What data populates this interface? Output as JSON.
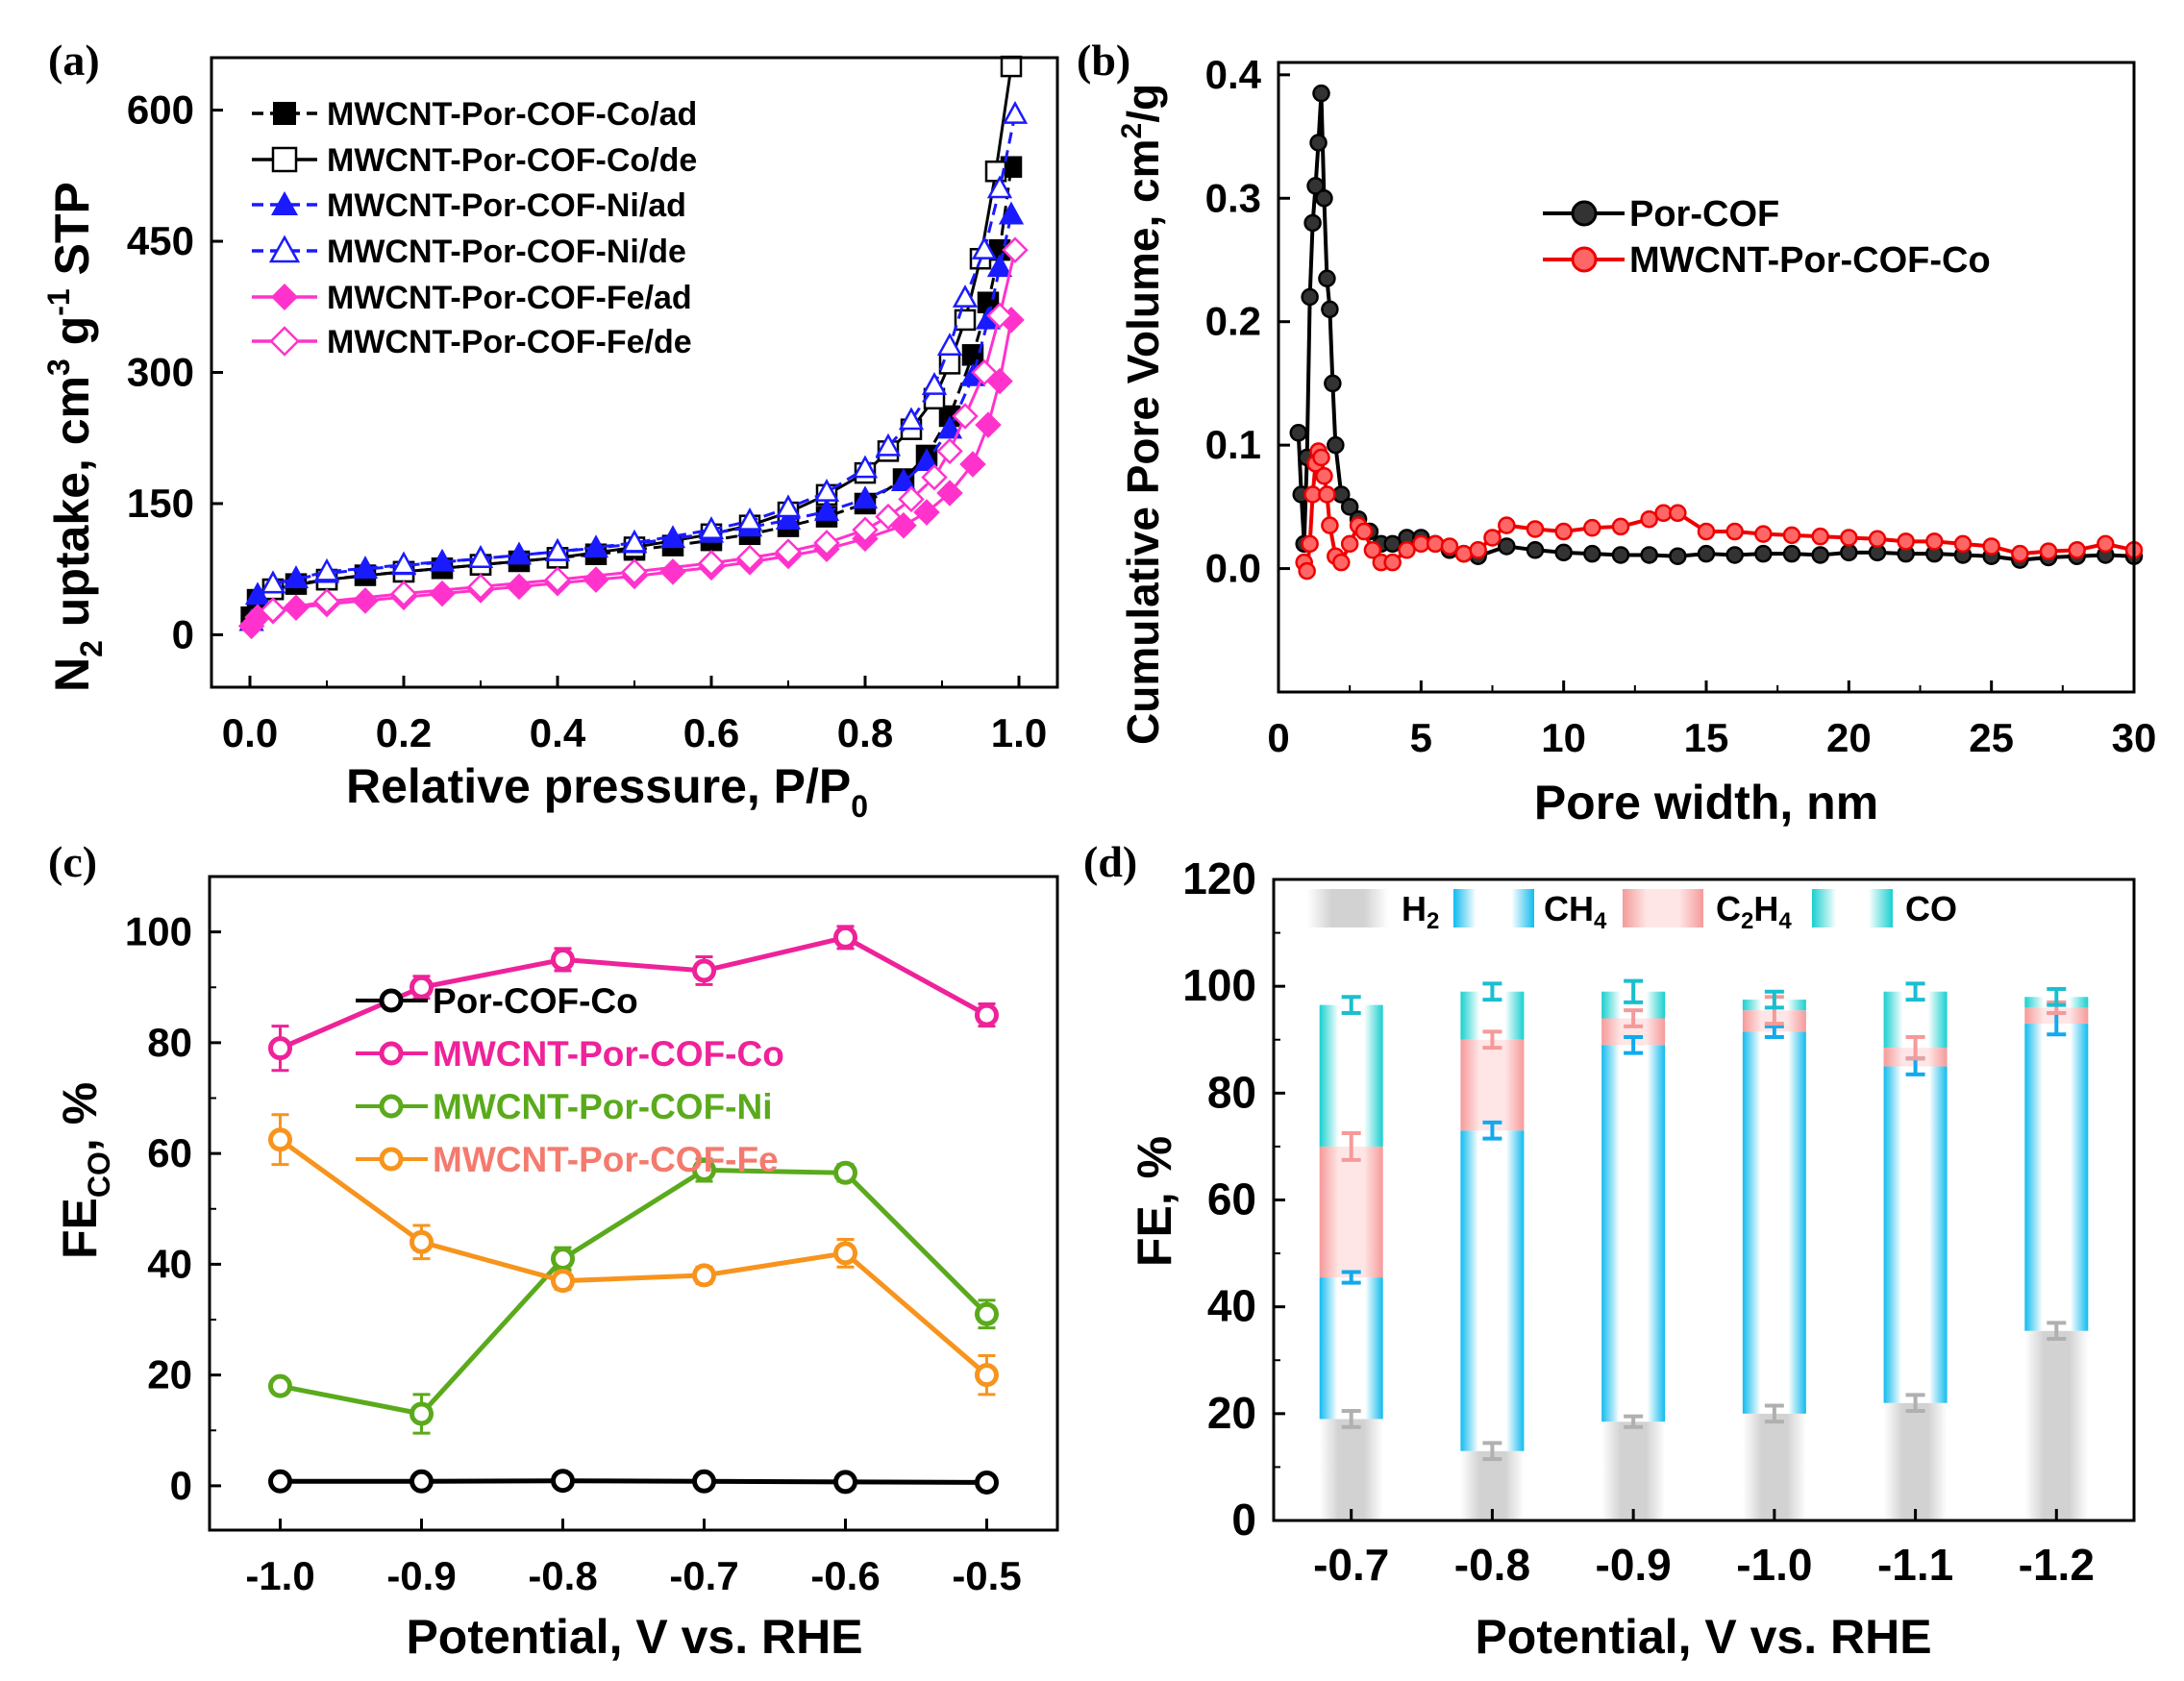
{
  "chart_data": [
    {
      "panel": "(a)",
      "type": "line",
      "xlabel": "Relative pressure, P/P0",
      "ylabel": "N2 uptake, cm3 g-1 STP",
      "xlim": [
        -0.05,
        1.05
      ],
      "ylim": [
        -60,
        660
      ],
      "xticks": [
        "0.0",
        "0.2",
        "0.4",
        "0.6",
        "0.8",
        "1.0"
      ],
      "yticks": [
        "0",
        "150",
        "300",
        "450",
        "600"
      ],
      "legend_position": "top-left",
      "series": [
        {
          "name": "MWCNT-Por-COF-Co/ad",
          "color": "#000000",
          "marker": "square",
          "filled": true,
          "x": [
            0.002,
            0.01,
            0.03,
            0.06,
            0.1,
            0.15,
            0.2,
            0.25,
            0.3,
            0.35,
            0.4,
            0.45,
            0.5,
            0.55,
            0.6,
            0.65,
            0.7,
            0.75,
            0.8,
            0.85,
            0.88,
            0.91,
            0.94,
            0.96,
            0.975,
            0.99
          ],
          "y": [
            20,
            40,
            52,
            58,
            63,
            68,
            72,
            76,
            80,
            84,
            88,
            92,
            97,
            102,
            108,
            115,
            124,
            135,
            150,
            178,
            205,
            250,
            320,
            380,
            440,
            535
          ]
        },
        {
          "name": "MWCNT-Por-COF-Co/de",
          "color": "#000000",
          "marker": "square",
          "filled": false,
          "x": [
            0.99,
            0.97,
            0.95,
            0.93,
            0.91,
            0.89,
            0.86,
            0.83,
            0.8,
            0.75,
            0.7,
            0.65,
            0.6,
            0.5,
            0.4,
            0.3,
            0.2,
            0.1,
            0.03
          ],
          "y": [
            650,
            530,
            430,
            360,
            310,
            270,
            235,
            210,
            185,
            160,
            140,
            125,
            115,
            100,
            88,
            80,
            72,
            63,
            52
          ]
        },
        {
          "name": "MWCNT-Por-COF-Ni/ad",
          "color": "#1a1aff",
          "marker": "triangle",
          "filled": true,
          "x": [
            0.002,
            0.01,
            0.03,
            0.06,
            0.1,
            0.15,
            0.2,
            0.25,
            0.3,
            0.35,
            0.4,
            0.45,
            0.5,
            0.55,
            0.6,
            0.65,
            0.7,
            0.75,
            0.8,
            0.85,
            0.88,
            0.91,
            0.94,
            0.96,
            0.975,
            0.99
          ],
          "y": [
            15,
            45,
            58,
            64,
            70,
            75,
            79,
            83,
            87,
            91,
            95,
            99,
            104,
            110,
            116,
            123,
            131,
            141,
            155,
            175,
            198,
            235,
            295,
            360,
            420,
            480
          ]
        },
        {
          "name": "MWCNT-Por-COF-Ni/de",
          "color": "#1a1aff",
          "marker": "triangle",
          "filled": false,
          "x": [
            0.995,
            0.975,
            0.955,
            0.93,
            0.91,
            0.89,
            0.86,
            0.83,
            0.8,
            0.75,
            0.7,
            0.65,
            0.6,
            0.5,
            0.4,
            0.3,
            0.2,
            0.1,
            0.03
          ],
          "y": [
            595,
            510,
            440,
            385,
            330,
            285,
            245,
            215,
            190,
            163,
            145,
            130,
            120,
            105,
            95,
            87,
            80,
            72,
            58
          ]
        },
        {
          "name": "MWCNT-Por-COF-Fe/ad",
          "color": "#ff33cc",
          "marker": "diamond",
          "filled": true,
          "x": [
            0.002,
            0.01,
            0.03,
            0.06,
            0.1,
            0.15,
            0.2,
            0.25,
            0.3,
            0.35,
            0.4,
            0.45,
            0.5,
            0.55,
            0.6,
            0.65,
            0.7,
            0.75,
            0.8,
            0.85,
            0.88,
            0.91,
            0.94,
            0.96,
            0.975,
            0.99
          ],
          "y": [
            10,
            20,
            27,
            31,
            35,
            39,
            43,
            47,
            51,
            55,
            59,
            63,
            67,
            72,
            77,
            83,
            90,
            98,
            110,
            125,
            140,
            162,
            195,
            240,
            290,
            360
          ]
        },
        {
          "name": "MWCNT-Por-COF-Fe/de",
          "color": "#ff33cc",
          "marker": "diamond",
          "filled": false,
          "x": [
            0.995,
            0.975,
            0.955,
            0.93,
            0.91,
            0.89,
            0.86,
            0.83,
            0.8,
            0.75,
            0.7,
            0.65,
            0.6,
            0.5,
            0.4,
            0.3,
            0.2,
            0.1,
            0.03
          ],
          "y": [
            440,
            365,
            300,
            250,
            210,
            180,
            155,
            135,
            120,
            105,
            95,
            88,
            82,
            72,
            63,
            55,
            47,
            38,
            28
          ]
        }
      ]
    },
    {
      "panel": "(b)",
      "type": "line",
      "xlabel": "Pore width, nm",
      "ylabel": "Cumulative Pore Volume, cm2/g",
      "xlim": [
        0,
        30
      ],
      "ylim": [
        -0.1,
        0.41
      ],
      "xticks": [
        "0",
        "5",
        "10",
        "15",
        "20",
        "25",
        "30"
      ],
      "yticks": [
        "0.0",
        "0.1",
        "0.2",
        "0.3",
        "0.4"
      ],
      "legend_position": "top-right",
      "series": [
        {
          "name": "Por-COF",
          "color": "#000000",
          "x": [
            0.7,
            0.8,
            0.9,
            1.0,
            1.1,
            1.2,
            1.3,
            1.4,
            1.5,
            1.6,
            1.7,
            1.8,
            1.9,
            2.0,
            2.2,
            2.5,
            2.8,
            3.2,
            3.6,
            4.0,
            4.5,
            5.0,
            5.5,
            6.0,
            6.5,
            7.0,
            8,
            9,
            10,
            11,
            12,
            13,
            14,
            15,
            16,
            17,
            18,
            19,
            20,
            21,
            22,
            23,
            24,
            25,
            26,
            27,
            28,
            29,
            30
          ],
          "y": [
            0.11,
            0.06,
            0.02,
            0.09,
            0.22,
            0.28,
            0.31,
            0.345,
            0.385,
            0.3,
            0.235,
            0.21,
            0.15,
            0.1,
            0.06,
            0.05,
            0.04,
            0.03,
            0.02,
            0.02,
            0.025,
            0.025,
            0.02,
            0.015,
            0.012,
            0.01,
            0.018,
            0.015,
            0.013,
            0.012,
            0.011,
            0.011,
            0.01,
            0.012,
            0.011,
            0.012,
            0.012,
            0.011,
            0.013,
            0.013,
            0.012,
            0.012,
            0.011,
            0.01,
            0.007,
            0.009,
            0.01,
            0.011,
            0.01
          ]
        },
        {
          "name": "MWCNT-Por-COF-Co",
          "color": "#ee0000",
          "x": [
            0.9,
            1.0,
            1.1,
            1.2,
            1.3,
            1.4,
            1.5,
            1.6,
            1.7,
            1.8,
            2.0,
            2.2,
            2.5,
            2.8,
            3.0,
            3.3,
            3.6,
            4.0,
            4.5,
            5.0,
            5.5,
            6.0,
            6.5,
            7.0,
            7.5,
            8,
            9,
            10,
            11,
            12,
            13,
            13.5,
            14,
            15,
            16,
            17,
            18,
            19,
            20,
            21,
            22,
            23,
            24,
            25,
            26,
            27,
            28,
            29,
            30
          ],
          "y": [
            0.005,
            -0.002,
            0.02,
            0.06,
            0.085,
            0.095,
            0.09,
            0.075,
            0.06,
            0.035,
            0.01,
            0.005,
            0.02,
            0.035,
            0.03,
            0.015,
            0.005,
            0.005,
            0.015,
            0.02,
            0.02,
            0.018,
            0.012,
            0.015,
            0.025,
            0.035,
            0.032,
            0.03,
            0.033,
            0.034,
            0.04,
            0.045,
            0.045,
            0.03,
            0.03,
            0.028,
            0.027,
            0.026,
            0.025,
            0.024,
            0.022,
            0.022,
            0.02,
            0.018,
            0.012,
            0.014,
            0.015,
            0.02,
            0.015
          ]
        }
      ]
    },
    {
      "panel": "(c)",
      "type": "line",
      "xlabel": "Potential, V vs. RHE",
      "ylabel": "FECO, %",
      "xlim": [
        -1.05,
        -0.45
      ],
      "ylim": [
        -8,
        110
      ],
      "xticks": [
        "-1.0",
        "-0.9",
        "-0.8",
        "-0.7",
        "-0.6",
        "-0.5"
      ],
      "yticks": [
        "0",
        "20",
        "40",
        "60",
        "80",
        "100"
      ],
      "categories": [
        "-1.0",
        "-0.9",
        "-0.8",
        "-0.7",
        "-0.6",
        "-0.5"
      ],
      "legend_position": "center-left",
      "series": [
        {
          "name": "Por-COF-Co",
          "color": "#000000",
          "values": [
            0.8,
            0.8,
            0.9,
            0.8,
            0.7,
            0.6
          ],
          "errors": [
            0,
            0,
            0,
            0,
            0,
            0
          ]
        },
        {
          "name": "MWCNT-Por-COF-Co",
          "color": "#ee2299",
          "values": [
            79,
            90,
            95,
            93,
            99,
            85
          ],
          "errors": [
            4,
            2,
            2,
            2.5,
            2,
            2
          ]
        },
        {
          "name": "MWCNT-Por-COF-Ni",
          "color": "#5aaa1c",
          "values": [
            18,
            13,
            41,
            57,
            56.5,
            31
          ],
          "errors": [
            1,
            3.5,
            2,
            2,
            1.5,
            2.5
          ]
        },
        {
          "name": "MWCNT-Por-COF-Fe",
          "color": "#f7941d",
          "values": [
            62.5,
            44,
            37,
            38,
            42,
            20
          ],
          "errors": [
            4.5,
            3,
            1.5,
            1.5,
            2.5,
            3.5
          ]
        }
      ]
    },
    {
      "panel": "(d)",
      "type": "bar",
      "stacked": true,
      "xlabel": "Potential, V vs. RHE",
      "ylabel": "FE, %",
      "ylim": [
        0,
        120
      ],
      "yticks": [
        "0",
        "20",
        "40",
        "60",
        "80",
        "100",
        "120"
      ],
      "categories": [
        "-0.7",
        "-0.8",
        "-0.9",
        "-1.0",
        "-1.1",
        "-1.2"
      ],
      "legend_position": "top",
      "series": [
        {
          "name": "H2",
          "color": "#c8c8c8",
          "values": [
            19,
            13,
            18.5,
            20,
            22,
            35.5
          ],
          "errors": [
            1.5,
            1.5,
            1,
            1.5,
            1.5,
            1.5
          ]
        },
        {
          "name": "CH4",
          "color": "#11bbee",
          "values": [
            26.5,
            60,
            70.5,
            71.5,
            63,
            57.5
          ],
          "errors": [
            1,
            1.5,
            1.5,
            1,
            1.5,
            2
          ]
        },
        {
          "name": "C2H4",
          "color": "#f5a0a0",
          "values": [
            24.5,
            17,
            5,
            4,
            3.5,
            3
          ],
          "errors": [
            2.5,
            1.5,
            1.5,
            2.5,
            2,
            1
          ]
        },
        {
          "name": "CO",
          "color": "#19cfcf",
          "values": [
            26.5,
            9,
            5,
            2,
            10.5,
            2
          ],
          "errors": [
            1.5,
            1.5,
            2,
            1.5,
            1.5,
            1.5
          ]
        }
      ]
    }
  ]
}
